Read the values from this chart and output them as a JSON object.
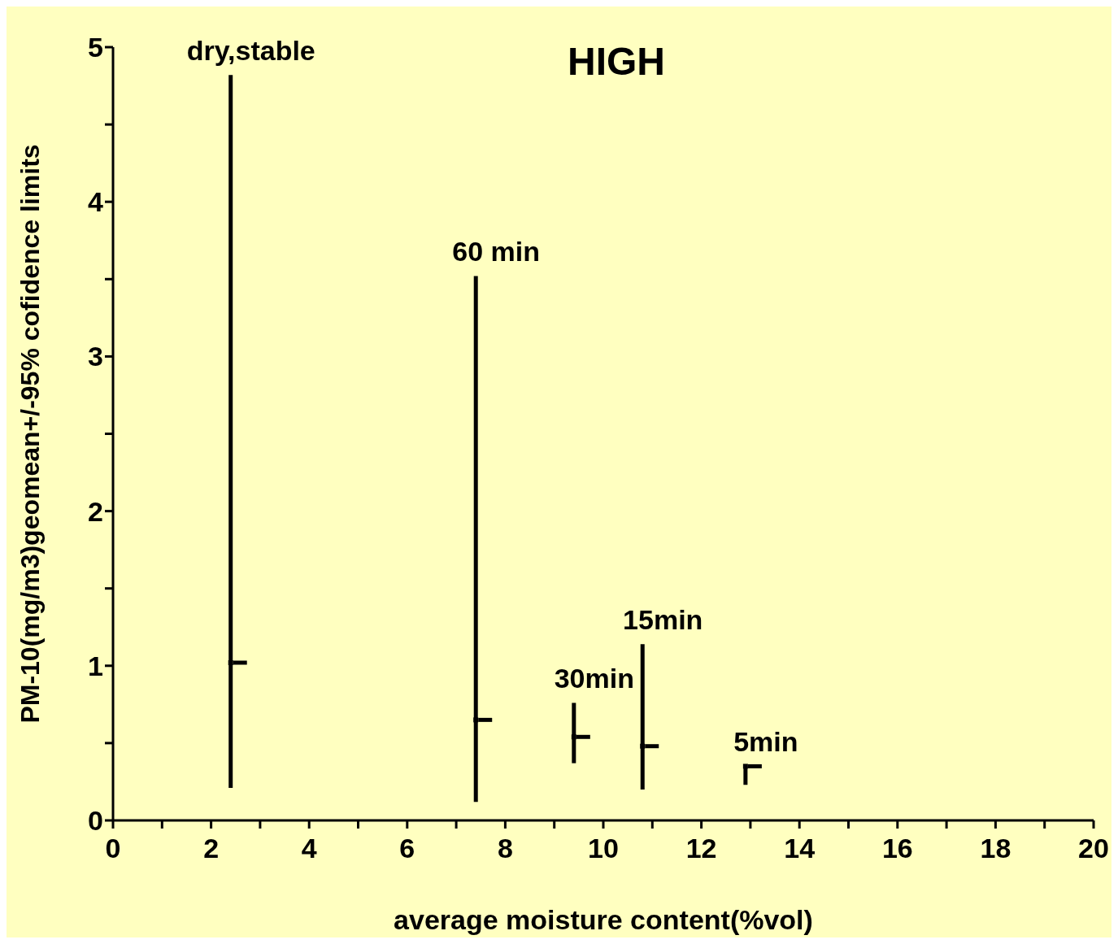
{
  "chart_data": {
    "type": "scatter",
    "xlabel": "average moisture content(%vol)",
    "ylabel": "PM-10(mg/m3)geomean+/-95% cofidence limits",
    "x": [
      2.4,
      7.4,
      9.4,
      10.8,
      12.9
    ],
    "series": [
      {
        "color": "#000000",
        "values": [
          1.02,
          0.65,
          0.54,
          0.48,
          0.35
        ],
        "errors": [
          [
            0.21,
            4.82
          ],
          [
            0.12,
            3.52
          ],
          [
            0.37,
            0.76
          ],
          [
            0.2,
            1.14
          ],
          [
            0.23,
            0.35
          ]
        ]
      }
    ],
    "annotations": [
      "HIGH",
      {
        "text": "dry,stable",
        "x": 2.4,
        "y": 4.82
      },
      {
        "text": "60 min",
        "x": 7.4,
        "y": 3.52
      },
      {
        "text": "30min",
        "x": 9.4,
        "y": 0.76
      },
      {
        "text": "15min",
        "x": 10.8,
        "y": 1.14
      },
      {
        "text": "5min",
        "x": 12.9,
        "y": 0.35
      }
    ],
    "xlim": [
      0,
      20
    ],
    "xticks": [
      0,
      {
        "value": 1,
        "label": null
      },
      2,
      {
        "value": 3,
        "label": null
      },
      4,
      {
        "value": 5,
        "label": null
      },
      6,
      {
        "value": 7,
        "label": null
      },
      8,
      {
        "value": 9,
        "label": null
      },
      10,
      {
        "value": 11,
        "label": null
      },
      12,
      {
        "value": 13,
        "label": null
      },
      14,
      {
        "value": 15,
        "label": null
      },
      16,
      {
        "value": 17,
        "label": null
      },
      18,
      {
        "value": 19,
        "label": null
      },
      20
    ],
    "ylim": [
      0,
      5
    ],
    "yticks": [
      0,
      {
        "value": 0.5,
        "label": null
      },
      1,
      {
        "value": 1.5,
        "label": null
      },
      2,
      {
        "value": 2.5,
        "label": null
      },
      3,
      {
        "value": 3.5,
        "label": null
      },
      4,
      {
        "value": 4.5,
        "label": null
      },
      5
    ],
    "grid": false,
    "legend": false
  }
}
